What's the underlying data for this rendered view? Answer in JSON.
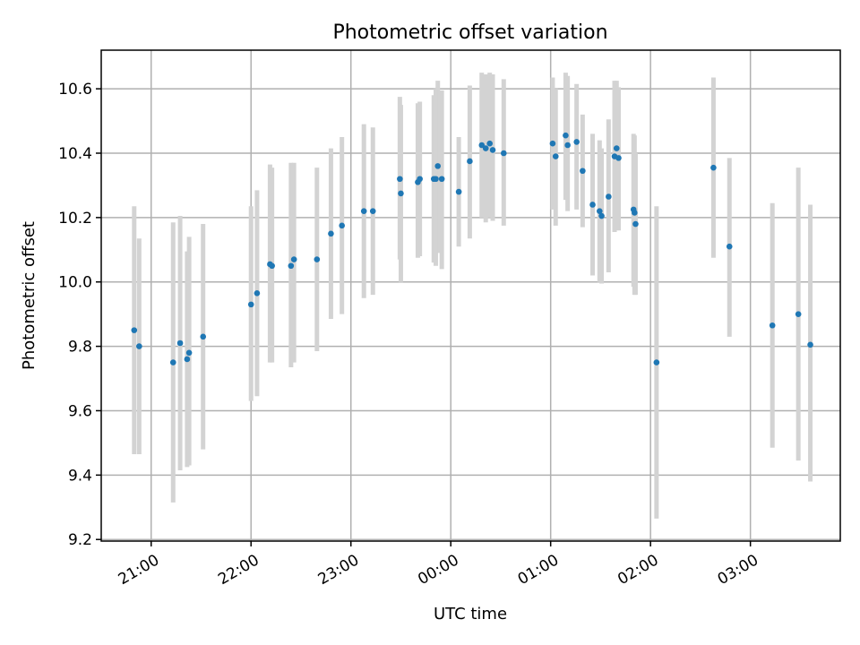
{
  "chart_data": {
    "type": "scatter",
    "title": "Photometric offset variation",
    "xlabel": "UTC time",
    "ylabel": "Photometric offset",
    "grid": true,
    "x_unit": "hours since 00:00 UTC",
    "xlim": [
      -3.5,
      3.9
    ],
    "ylim": [
      9.195,
      10.72
    ],
    "xticks": [
      -3,
      -2,
      -1,
      0,
      1,
      2,
      3
    ],
    "xtick_labels": [
      "21:00",
      "22:00",
      "23:00",
      "00:00",
      "01:00",
      "02:00",
      "03:00"
    ],
    "yticks": [
      9.2,
      9.4,
      9.6,
      9.8,
      10.0,
      10.2,
      10.4,
      10.6
    ],
    "ytick_labels": [
      "9.2",
      "9.4",
      "9.6",
      "9.8",
      "10.0",
      "10.2",
      "10.4",
      "10.6"
    ],
    "marker_color": "#1f77b4",
    "errorbar_color": "#d3d3d3",
    "points": [
      {
        "x": -3.17,
        "y": 9.85,
        "lo": 9.465,
        "hi": 10.235
      },
      {
        "x": -3.12,
        "y": 9.8,
        "lo": 9.465,
        "hi": 10.135
      },
      {
        "x": -2.78,
        "y": 9.75,
        "lo": 9.315,
        "hi": 10.185
      },
      {
        "x": -2.71,
        "y": 9.81,
        "lo": 9.415,
        "hi": 10.205
      },
      {
        "x": -2.64,
        "y": 9.76,
        "lo": 9.425,
        "hi": 10.095
      },
      {
        "x": -2.62,
        "y": 9.78,
        "lo": 9.43,
        "hi": 10.14
      },
      {
        "x": -2.48,
        "y": 9.83,
        "lo": 9.48,
        "hi": 10.18
      },
      {
        "x": -2.0,
        "y": 9.93,
        "lo": 9.63,
        "hi": 10.235
      },
      {
        "x": -1.94,
        "y": 9.965,
        "lo": 9.645,
        "hi": 10.285
      },
      {
        "x": -1.81,
        "y": 10.055,
        "lo": 9.75,
        "hi": 10.365
      },
      {
        "x": -1.79,
        "y": 10.05,
        "lo": 9.75,
        "hi": 10.355
      },
      {
        "x": -1.6,
        "y": 10.05,
        "lo": 9.735,
        "hi": 10.37
      },
      {
        "x": -1.57,
        "y": 10.07,
        "lo": 9.75,
        "hi": 10.37
      },
      {
        "x": -1.34,
        "y": 10.07,
        "lo": 9.785,
        "hi": 10.355
      },
      {
        "x": -1.2,
        "y": 10.15,
        "lo": 9.885,
        "hi": 10.415
      },
      {
        "x": -1.09,
        "y": 10.175,
        "lo": 9.9,
        "hi": 10.45
      },
      {
        "x": -0.87,
        "y": 10.22,
        "lo": 9.95,
        "hi": 10.49
      },
      {
        "x": -0.78,
        "y": 10.22,
        "lo": 9.96,
        "hi": 10.48
      },
      {
        "x": -0.51,
        "y": 10.32,
        "lo": 10.07,
        "hi": 10.575
      },
      {
        "x": -0.5,
        "y": 10.275,
        "lo": 10.0,
        "hi": 10.55
      },
      {
        "x": -0.33,
        "y": 10.31,
        "lo": 10.075,
        "hi": 10.555
      },
      {
        "x": -0.31,
        "y": 10.32,
        "lo": 10.08,
        "hi": 10.56
      },
      {
        "x": -0.17,
        "y": 10.32,
        "lo": 10.06,
        "hi": 10.58
      },
      {
        "x": -0.13,
        "y": 10.36,
        "lo": 10.09,
        "hi": 10.625
      },
      {
        "x": -0.15,
        "y": 10.32,
        "lo": 10.05,
        "hi": 10.6
      },
      {
        "x": -0.09,
        "y": 10.32,
        "lo": 10.04,
        "hi": 10.595
      },
      {
        "x": 0.08,
        "y": 10.28,
        "lo": 10.11,
        "hi": 10.45
      },
      {
        "x": 0.19,
        "y": 10.375,
        "lo": 10.135,
        "hi": 10.61
      },
      {
        "x": 0.31,
        "y": 10.425,
        "lo": 10.2,
        "hi": 10.65
      },
      {
        "x": 0.35,
        "y": 10.415,
        "lo": 10.185,
        "hi": 10.645
      },
      {
        "x": 0.39,
        "y": 10.43,
        "lo": 10.2,
        "hi": 10.65
      },
      {
        "x": 0.42,
        "y": 10.41,
        "lo": 10.19,
        "hi": 10.645
      },
      {
        "x": 0.53,
        "y": 10.4,
        "lo": 10.175,
        "hi": 10.63
      },
      {
        "x": 1.02,
        "y": 10.43,
        "lo": 10.225,
        "hi": 10.635
      },
      {
        "x": 1.05,
        "y": 10.39,
        "lo": 10.175,
        "hi": 10.6
      },
      {
        "x": 1.15,
        "y": 10.455,
        "lo": 10.255,
        "hi": 10.65
      },
      {
        "x": 1.17,
        "y": 10.425,
        "lo": 10.22,
        "hi": 10.64
      },
      {
        "x": 1.26,
        "y": 10.435,
        "lo": 10.225,
        "hi": 10.615
      },
      {
        "x": 1.32,
        "y": 10.345,
        "lo": 10.17,
        "hi": 10.52
      },
      {
        "x": 1.42,
        "y": 10.24,
        "lo": 10.02,
        "hi": 10.46
      },
      {
        "x": 1.49,
        "y": 10.22,
        "lo": 10.0,
        "hi": 10.44
      },
      {
        "x": 1.51,
        "y": 10.205,
        "lo": 9.995,
        "hi": 10.415
      },
      {
        "x": 1.58,
        "y": 10.265,
        "lo": 10.03,
        "hi": 10.505
      },
      {
        "x": 1.64,
        "y": 10.39,
        "lo": 10.155,
        "hi": 10.625
      },
      {
        "x": 1.66,
        "y": 10.415,
        "lo": 10.18,
        "hi": 10.625
      },
      {
        "x": 1.68,
        "y": 10.385,
        "lo": 10.16,
        "hi": 10.605
      },
      {
        "x": 1.83,
        "y": 10.225,
        "lo": 9.985,
        "hi": 10.46
      },
      {
        "x": 1.84,
        "y": 10.215,
        "lo": 9.96,
        "hi": 10.455
      },
      {
        "x": 1.85,
        "y": 10.18,
        "lo": 9.96,
        "hi": 10.4
      },
      {
        "x": 2.06,
        "y": 9.75,
        "lo": 9.265,
        "hi": 10.235
      },
      {
        "x": 2.63,
        "y": 10.355,
        "lo": 10.075,
        "hi": 10.635
      },
      {
        "x": 2.79,
        "y": 10.11,
        "lo": 9.83,
        "hi": 10.385
      },
      {
        "x": 3.22,
        "y": 9.865,
        "lo": 9.485,
        "hi": 10.245
      },
      {
        "x": 3.48,
        "y": 9.9,
        "lo": 9.445,
        "hi": 10.355
      },
      {
        "x": 3.6,
        "y": 9.805,
        "lo": 9.38,
        "hi": 10.24
      }
    ]
  }
}
